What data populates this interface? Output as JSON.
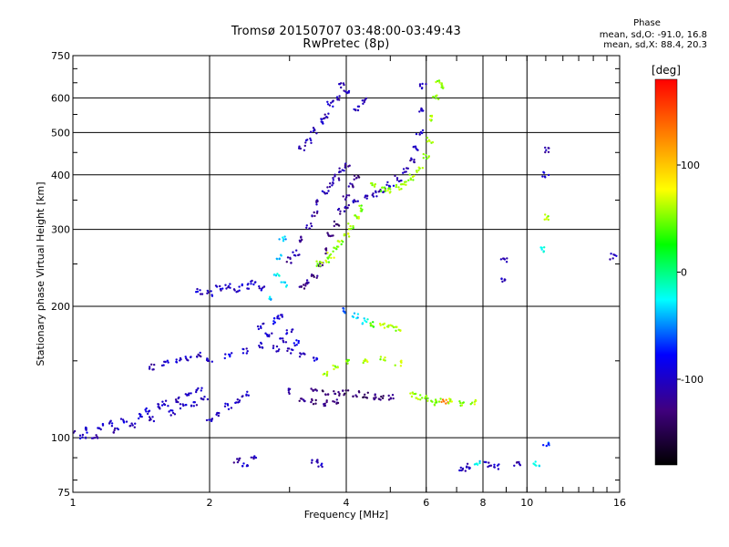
{
  "chart_data": {
    "type": "scatter",
    "title": "Tromsø 20150707 03:48:00-03:49:43",
    "subtitle": "RwPretec (8p)",
    "xlabel": "Frequency [MHz]",
    "ylabel": "Stationary phase Virtual Height [km]",
    "xscale": "log",
    "yscale": "log",
    "xlim": [
      1,
      16
    ],
    "ylim": [
      75,
      750
    ],
    "xticks": [
      1,
      2,
      4,
      6,
      8,
      10,
      16
    ],
    "xtick_labels": [
      "1",
      "2",
      "4",
      "6",
      "8",
      "10",
      "16"
    ],
    "yticks": [
      75,
      100,
      200,
      300,
      400,
      500,
      600,
      750
    ],
    "ytick_labels": [
      "75",
      "100",
      "200",
      "300",
      "400",
      "500",
      "600",
      "750"
    ],
    "grid": true,
    "annotation": {
      "heading": "Phase",
      "line1": "mean, sd,O: -91.0, 16.8",
      "line2": "mean, sd,X: 88.4, 20.3"
    },
    "colorbar": {
      "label": "[deg]",
      "range": [
        -180,
        180
      ],
      "ticks": [
        100,
        0,
        -100
      ],
      "tick_labels": [
        "100",
        "0",
        "-100"
      ],
      "colors": [
        "#ff0000",
        "#ff8000",
        "#ffff00",
        "#00ff00",
        "#00ffff",
        "#0000ff",
        "#40007f",
        "#000000"
      ]
    },
    "series": [
      {
        "values": [
          [
            1.0,
            103,
            -105
          ],
          [
            1.05,
            101,
            -100
          ],
          [
            1.08,
            104,
            -95
          ],
          [
            1.12,
            100,
            -110
          ],
          [
            1.15,
            106,
            -100
          ],
          [
            1.2,
            108,
            -95
          ],
          [
            1.25,
            104,
            -105
          ],
          [
            1.3,
            110,
            -90
          ],
          [
            1.35,
            107,
            -100
          ],
          [
            1.4,
            112,
            -100
          ],
          [
            1.45,
            115,
            -95
          ],
          [
            1.5,
            110,
            -105
          ],
          [
            1.55,
            118,
            -100
          ],
          [
            1.6,
            120,
            -95
          ],
          [
            1.65,
            114,
            -100
          ],
          [
            1.7,
            122,
            -110
          ],
          [
            1.75,
            118,
            -100
          ],
          [
            1.8,
            126,
            -95
          ],
          [
            1.85,
            120,
            -100
          ],
          [
            1.9,
            128,
            -105
          ],
          [
            1.95,
            124,
            -100
          ],
          [
            2.0,
            110,
            -100
          ],
          [
            2.1,
            113,
            -95
          ],
          [
            2.2,
            118,
            -100
          ],
          [
            2.3,
            122,
            -105
          ],
          [
            2.4,
            126,
            -100
          ]
        ]
      },
      {
        "values": [
          [
            1.5,
            145,
            -110
          ],
          [
            1.6,
            148,
            -100
          ],
          [
            1.7,
            150,
            -95
          ],
          [
            1.8,
            152,
            -100
          ],
          [
            1.9,
            155,
            -105
          ],
          [
            2.0,
            150,
            -100
          ],
          [
            2.2,
            154,
            -90
          ],
          [
            2.4,
            158,
            -100
          ],
          [
            2.6,
            163,
            -95
          ],
          [
            2.8,
            160,
            -100
          ],
          [
            3.0,
            158,
            -110
          ],
          [
            3.2,
            155,
            -100
          ],
          [
            3.4,
            152,
            -95
          ]
        ]
      },
      {
        "values": [
          [
            2.6,
            180,
            -100
          ],
          [
            2.7,
            172,
            -95
          ],
          [
            2.8,
            185,
            -80
          ],
          [
            2.85,
            190,
            -100
          ],
          [
            2.9,
            168,
            -105
          ],
          [
            3.0,
            175,
            -100
          ],
          [
            3.1,
            165,
            -90
          ]
        ]
      },
      {
        "values": [
          [
            1.9,
            216,
            -100
          ],
          [
            2.0,
            214,
            -95
          ],
          [
            2.1,
            220,
            -100
          ],
          [
            2.2,
            222,
            -105
          ],
          [
            2.3,
            219,
            -100
          ],
          [
            2.4,
            222,
            -95
          ],
          [
            2.5,
            226,
            -100
          ],
          [
            2.6,
            220,
            -100
          ]
        ]
      },
      {
        "values": [
          [
            2.75,
            210,
            -40
          ],
          [
            2.8,
            235,
            -30
          ],
          [
            2.85,
            260,
            -35
          ],
          [
            2.9,
            285,
            -40
          ],
          [
            2.92,
            225,
            -30
          ]
        ]
      },
      {
        "values": [
          [
            3.0,
            255,
            -120
          ],
          [
            3.1,
            265,
            -110
          ],
          [
            3.2,
            285,
            -115
          ],
          [
            3.3,
            305,
            -105
          ],
          [
            3.4,
            325,
            -115
          ],
          [
            3.5,
            345,
            -110
          ],
          [
            3.6,
            365,
            -100
          ],
          [
            3.7,
            380,
            -115
          ],
          [
            3.8,
            395,
            -110
          ],
          [
            3.9,
            410,
            -105
          ],
          [
            4.0,
            420,
            -115
          ]
        ]
      },
      {
        "values": [
          [
            3.2,
            222,
            -125
          ],
          [
            3.3,
            226,
            -120
          ],
          [
            3.4,
            235,
            -130
          ],
          [
            3.5,
            250,
            -125
          ],
          [
            3.6,
            268,
            -120
          ],
          [
            3.7,
            290,
            -125
          ],
          [
            3.8,
            310,
            -130
          ],
          [
            3.9,
            330,
            -120
          ],
          [
            4.0,
            355,
            -125
          ],
          [
            4.1,
            380,
            -120
          ],
          [
            4.2,
            395,
            -130
          ]
        ]
      },
      {
        "values": [
          [
            3.2,
            460,
            -110
          ],
          [
            3.3,
            480,
            -100
          ],
          [
            3.4,
            505,
            -105
          ],
          [
            3.5,
            530,
            -100
          ],
          [
            3.6,
            545,
            -110
          ],
          [
            3.7,
            580,
            -100
          ],
          [
            3.8,
            600,
            -105
          ],
          [
            3.9,
            640,
            -100
          ],
          [
            4.0,
            620,
            -110
          ],
          [
            4.2,
            570,
            -100
          ],
          [
            4.4,
            590,
            -105
          ]
        ]
      },
      {
        "values": [
          [
            4.0,
            340,
            -110
          ],
          [
            4.2,
            348,
            -100
          ],
          [
            4.4,
            355,
            -105
          ],
          [
            4.6,
            362,
            -100
          ],
          [
            4.8,
            370,
            -110
          ],
          [
            5.0,
            380,
            -100
          ],
          [
            5.2,
            392,
            -105
          ],
          [
            5.4,
            410,
            -100
          ],
          [
            5.6,
            430,
            -110
          ],
          [
            5.7,
            460,
            -100
          ],
          [
            5.8,
            500,
            -105
          ],
          [
            5.85,
            560,
            -100
          ],
          [
            5.9,
            640,
            -110
          ]
        ]
      },
      {
        "values": [
          [
            3.5,
            250,
            50
          ],
          [
            3.6,
            255,
            55
          ],
          [
            3.7,
            262,
            60
          ],
          [
            3.8,
            270,
            50
          ],
          [
            3.9,
            280,
            55
          ],
          [
            4.0,
            292,
            60
          ],
          [
            4.1,
            305,
            50
          ],
          [
            4.2,
            320,
            55
          ],
          [
            4.3,
            335,
            50
          ]
        ]
      },
      {
        "values": [
          [
            4.6,
            380,
            55
          ],
          [
            4.8,
            372,
            50
          ],
          [
            5.0,
            368,
            60
          ],
          [
            5.2,
            375,
            55
          ],
          [
            5.4,
            385,
            50
          ],
          [
            5.6,
            395,
            60
          ],
          [
            5.8,
            410,
            55
          ],
          [
            6.0,
            440,
            50
          ],
          [
            6.1,
            480,
            55
          ],
          [
            6.2,
            540,
            60
          ],
          [
            6.3,
            600,
            50
          ],
          [
            6.4,
            650,
            55
          ],
          [
            6.5,
            640,
            50
          ]
        ]
      },
      {
        "values": [
          [
            3.4,
            128,
            -130
          ],
          [
            3.6,
            127,
            -140
          ],
          [
            3.8,
            126,
            -130
          ],
          [
            4.0,
            127,
            -135
          ],
          [
            4.2,
            126,
            -130
          ],
          [
            4.4,
            125,
            -140
          ],
          [
            4.6,
            124,
            -130
          ],
          [
            4.8,
            124,
            -135
          ],
          [
            5.0,
            124,
            -130
          ]
        ]
      },
      {
        "values": [
          [
            3.0,
            128,
            -120
          ],
          [
            3.2,
            122,
            -125
          ],
          [
            3.4,
            121,
            -130
          ],
          [
            3.6,
            120,
            -120
          ],
          [
            3.8,
            121,
            -125
          ]
        ]
      },
      {
        "values": [
          [
            3.6,
            140,
            60
          ],
          [
            3.8,
            145,
            55
          ],
          [
            4.0,
            150,
            50
          ],
          [
            4.4,
            150,
            60
          ],
          [
            4.8,
            152,
            55
          ],
          [
            5.2,
            148,
            60
          ],
          [
            5.6,
            126,
            55
          ],
          [
            5.8,
            124,
            60
          ],
          [
            6.0,
            123,
            50
          ],
          [
            6.2,
            120,
            55
          ],
          [
            6.4,
            122,
            50
          ],
          [
            6.6,
            121,
            130
          ],
          [
            6.8,
            121,
            60
          ],
          [
            7.2,
            120,
            55
          ],
          [
            7.6,
            121,
            60
          ]
        ]
      },
      {
        "values": [
          [
            4.0,
            195,
            -60
          ],
          [
            4.2,
            190,
            -40
          ],
          [
            4.4,
            185,
            -30
          ],
          [
            4.6,
            182,
            40
          ],
          [
            4.8,
            180,
            60
          ],
          [
            5.0,
            180,
            55
          ],
          [
            5.2,
            178,
            60
          ]
        ]
      },
      {
        "values": [
          [
            2.3,
            89,
            -110
          ],
          [
            2.4,
            87,
            -100
          ],
          [
            2.5,
            90,
            -105
          ],
          [
            3.4,
            88,
            -110
          ],
          [
            3.5,
            87,
            -100
          ],
          [
            7.2,
            85,
            -110
          ],
          [
            7.4,
            86,
            -100
          ],
          [
            7.8,
            88,
            -30
          ],
          [
            8.2,
            87,
            -105
          ],
          [
            8.6,
            86,
            -100
          ],
          [
            9.5,
            87,
            -110
          ],
          [
            10.5,
            87,
            -20
          ],
          [
            11.0,
            96,
            -60
          ],
          [
            10.8,
            270,
            -20
          ],
          [
            11.0,
            455,
            -110
          ],
          [
            11.0,
            400,
            -100
          ],
          [
            11.0,
            320,
            60
          ],
          [
            15.5,
            260,
            -100
          ],
          [
            8.9,
            255,
            -110
          ],
          [
            8.9,
            230,
            -100
          ]
        ]
      }
    ]
  }
}
